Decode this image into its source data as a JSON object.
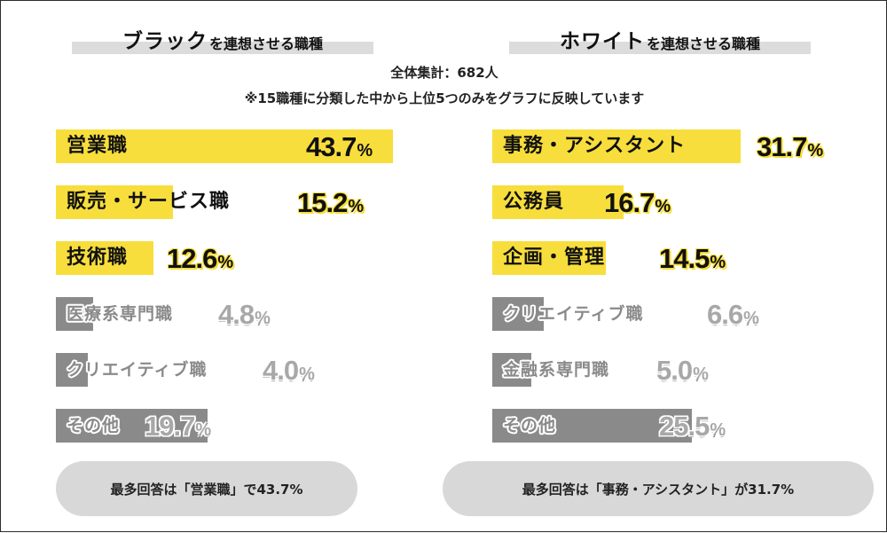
{
  "header": {
    "left_title_main": "ブラック",
    "left_title_sub": "を連想させる職種",
    "right_title_main": "ホワイト",
    "right_title_sub": "を連想させる職種",
    "total_note": "全体集計：682人",
    "method_note": "※15職種に分類した中から上位5つのみをグラフに反映しています"
  },
  "chart_data": [
    {
      "type": "bar",
      "orientation": "horizontal",
      "title": "ブラックを連想させる職種",
      "unit": "%",
      "categories": [
        "営業職",
        "販売・サービス職",
        "技術職",
        "医療系専門職",
        "クリエイティブ職",
        "その他"
      ],
      "values": [
        43.7,
        15.2,
        12.6,
        4.8,
        4.0,
        19.7
      ],
      "value_labels": [
        "43.7",
        "15.2",
        "12.6",
        "4.8",
        "4.0",
        "19.7"
      ],
      "highlighted": [
        true,
        true,
        true,
        false,
        false,
        false
      ],
      "colors": {
        "highlight": "#f7de3c",
        "other": "#8a8a8a"
      },
      "summary": "最多回答は「営業職」で43.7%"
    },
    {
      "type": "bar",
      "orientation": "horizontal",
      "title": "ホワイトを連想させる職種",
      "unit": "%",
      "categories": [
        "事務・アシスタント",
        "公務員",
        "企画・管理",
        "クリエイティブ職",
        "金融系専門職",
        "その他"
      ],
      "values": [
        31.7,
        16.7,
        14.5,
        6.6,
        5.0,
        25.5
      ],
      "value_labels": [
        "31.7",
        "16.7",
        "14.5",
        "6.6",
        "5.0",
        "25.5"
      ],
      "highlighted": [
        true,
        true,
        true,
        false,
        false,
        false
      ],
      "colors": {
        "highlight": "#f7de3c",
        "other": "#8a8a8a"
      },
      "summary": "最多回答は「事務・アシスタント」が31.7%"
    }
  ]
}
